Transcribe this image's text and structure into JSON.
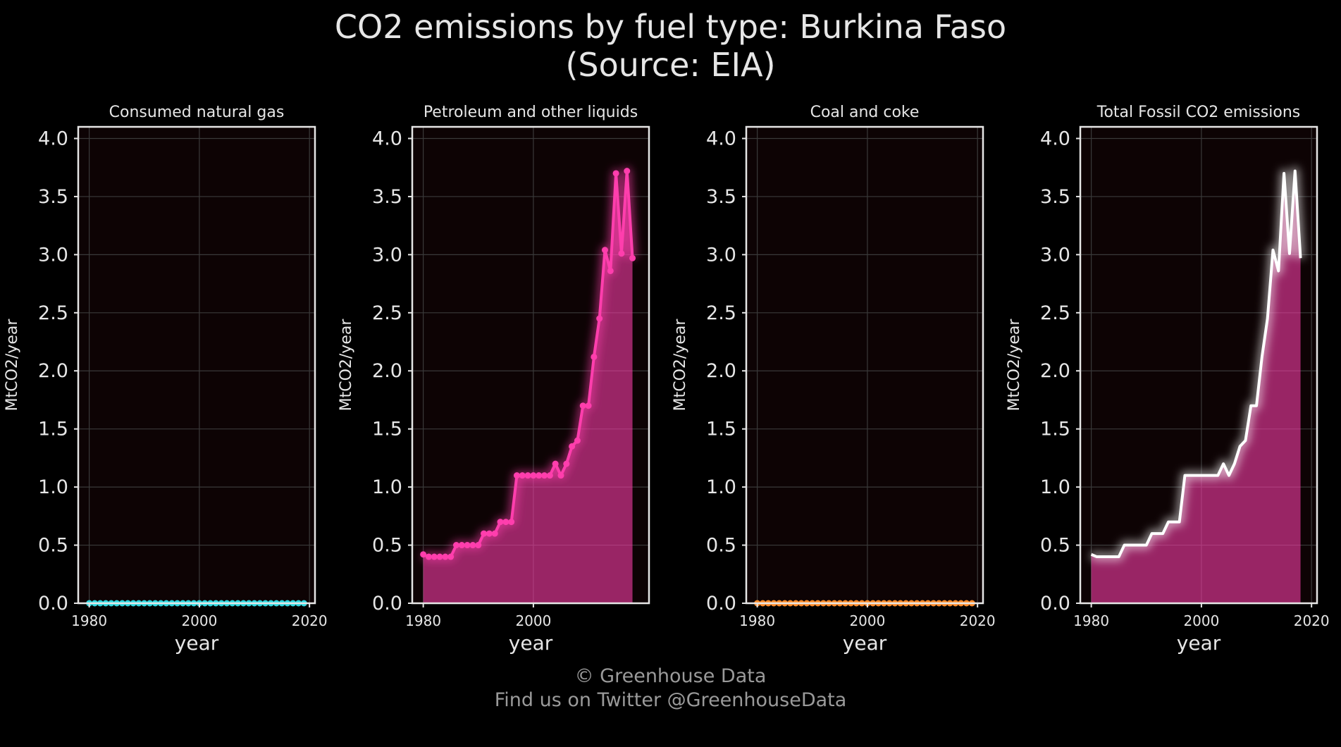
{
  "title_line1": "CO2 emissions by fuel type: Burkina Faso",
  "title_line2": "(Source: EIA)",
  "footer_line1": "© Greenhouse Data",
  "footer_line2": "Find us on Twitter @GreenhouseData",
  "chart_data": [
    {
      "type": "area",
      "title": "Consumed natural gas",
      "xlabel": "year",
      "ylabel": "MtCO2/year",
      "xlim": [
        1978,
        2021
      ],
      "ylim": [
        0,
        4.1
      ],
      "yticks": [
        "0.0",
        "0.5",
        "1.0",
        "1.5",
        "2.0",
        "2.5",
        "3.0",
        "3.5",
        "4.0"
      ],
      "xticks": [
        "1980",
        "2000",
        "2020"
      ],
      "color": "#2fd8e0",
      "markers": true,
      "glow": "#2fd8e0",
      "x": [
        1980,
        1981,
        1982,
        1983,
        1984,
        1985,
        1986,
        1987,
        1988,
        1989,
        1990,
        1991,
        1992,
        1993,
        1994,
        1995,
        1996,
        1997,
        1998,
        1999,
        2000,
        2001,
        2002,
        2003,
        2004,
        2005,
        2006,
        2007,
        2008,
        2009,
        2010,
        2011,
        2012,
        2013,
        2014,
        2015,
        2016,
        2017,
        2018,
        2019
      ],
      "y": [
        0,
        0,
        0,
        0,
        0,
        0,
        0,
        0,
        0,
        0,
        0,
        0,
        0,
        0,
        0,
        0,
        0,
        0,
        0,
        0,
        0,
        0,
        0,
        0,
        0,
        0,
        0,
        0,
        0,
        0,
        0,
        0,
        0,
        0,
        0,
        0,
        0,
        0,
        0,
        0
      ]
    },
    {
      "type": "area",
      "title": "Petroleum and other liquids",
      "xlabel": "year",
      "ylabel": "MtCO2/year",
      "xlim": [
        1978,
        2021
      ],
      "ylim": [
        0,
        4.1
      ],
      "yticks": [
        "0.0",
        "0.5",
        "1.0",
        "1.5",
        "2.0",
        "2.5",
        "3.0",
        "3.5",
        "4.0"
      ],
      "xticks": [
        "1980",
        "2000"
      ],
      "color": "#ff3ead",
      "markers": true,
      "glow": "#ff3ead",
      "x": [
        1980,
        1981,
        1982,
        1983,
        1984,
        1985,
        1986,
        1987,
        1988,
        1989,
        1990,
        1991,
        1992,
        1993,
        1994,
        1995,
        1996,
        1997,
        1998,
        1999,
        2000,
        2001,
        2002,
        2003,
        2004,
        2005,
        2006,
        2007,
        2008,
        2009,
        2010,
        2011,
        2012,
        2013,
        2014,
        2015,
        2016,
        2017,
        2018
      ],
      "y": [
        0.42,
        0.4,
        0.4,
        0.4,
        0.4,
        0.4,
        0.5,
        0.5,
        0.5,
        0.5,
        0.5,
        0.6,
        0.6,
        0.6,
        0.7,
        0.7,
        0.7,
        1.1,
        1.1,
        1.1,
        1.1,
        1.1,
        1.1,
        1.1,
        1.2,
        1.1,
        1.2,
        1.35,
        1.4,
        1.7,
        1.7,
        2.12,
        2.45,
        3.04,
        2.86,
        3.7,
        3.01,
        3.72,
        2.97
      ]
    },
    {
      "type": "area",
      "title": "Coal and coke",
      "xlabel": "year",
      "ylabel": "MtCO2/year",
      "xlim": [
        1978,
        2021
      ],
      "ylim": [
        0,
        4.1
      ],
      "yticks": [
        "0.0",
        "0.5",
        "1.0",
        "1.5",
        "2.0",
        "2.5",
        "3.0",
        "3.5",
        "4.0"
      ],
      "xticks": [
        "1980",
        "2000",
        "2020"
      ],
      "color": "#ff8c2a",
      "markers": true,
      "glow": "#ff8c2a",
      "x": [
        1980,
        1981,
        1982,
        1983,
        1984,
        1985,
        1986,
        1987,
        1988,
        1989,
        1990,
        1991,
        1992,
        1993,
        1994,
        1995,
        1996,
        1997,
        1998,
        1999,
        2000,
        2001,
        2002,
        2003,
        2004,
        2005,
        2006,
        2007,
        2008,
        2009,
        2010,
        2011,
        2012,
        2013,
        2014,
        2015,
        2016,
        2017,
        2018,
        2019
      ],
      "y": [
        0,
        0,
        0,
        0,
        0,
        0,
        0,
        0,
        0,
        0,
        0,
        0,
        0,
        0,
        0,
        0,
        0,
        0,
        0,
        0,
        0,
        0,
        0,
        0,
        0,
        0,
        0,
        0,
        0,
        0,
        0,
        0,
        0,
        0,
        0,
        0,
        0,
        0,
        0,
        0
      ]
    },
    {
      "type": "area",
      "title": "Total Fossil CO2 emissions",
      "xlabel": "year",
      "ylabel": "MtCO2/year",
      "xlim": [
        1978,
        2021
      ],
      "ylim": [
        0,
        4.1
      ],
      "yticks": [
        "0.0",
        "0.5",
        "1.0",
        "1.5",
        "2.0",
        "2.5",
        "3.0",
        "3.5",
        "4.0"
      ],
      "xticks": [
        "1980",
        "2000",
        "2020"
      ],
      "color": "#ffffff",
      "fill": "#ff3ead",
      "markers": false,
      "glow": "#ffffff",
      "x": [
        1980,
        1981,
        1982,
        1983,
        1984,
        1985,
        1986,
        1987,
        1988,
        1989,
        1990,
        1991,
        1992,
        1993,
        1994,
        1995,
        1996,
        1997,
        1998,
        1999,
        2000,
        2001,
        2002,
        2003,
        2004,
        2005,
        2006,
        2007,
        2008,
        2009,
        2010,
        2011,
        2012,
        2013,
        2014,
        2015,
        2016,
        2017,
        2018
      ],
      "y": [
        0.42,
        0.4,
        0.4,
        0.4,
        0.4,
        0.4,
        0.5,
        0.5,
        0.5,
        0.5,
        0.5,
        0.6,
        0.6,
        0.6,
        0.7,
        0.7,
        0.7,
        1.1,
        1.1,
        1.1,
        1.1,
        1.1,
        1.1,
        1.1,
        1.2,
        1.1,
        1.2,
        1.35,
        1.4,
        1.7,
        1.7,
        2.12,
        2.45,
        3.04,
        2.86,
        3.7,
        3.01,
        3.72,
        2.97
      ]
    }
  ]
}
